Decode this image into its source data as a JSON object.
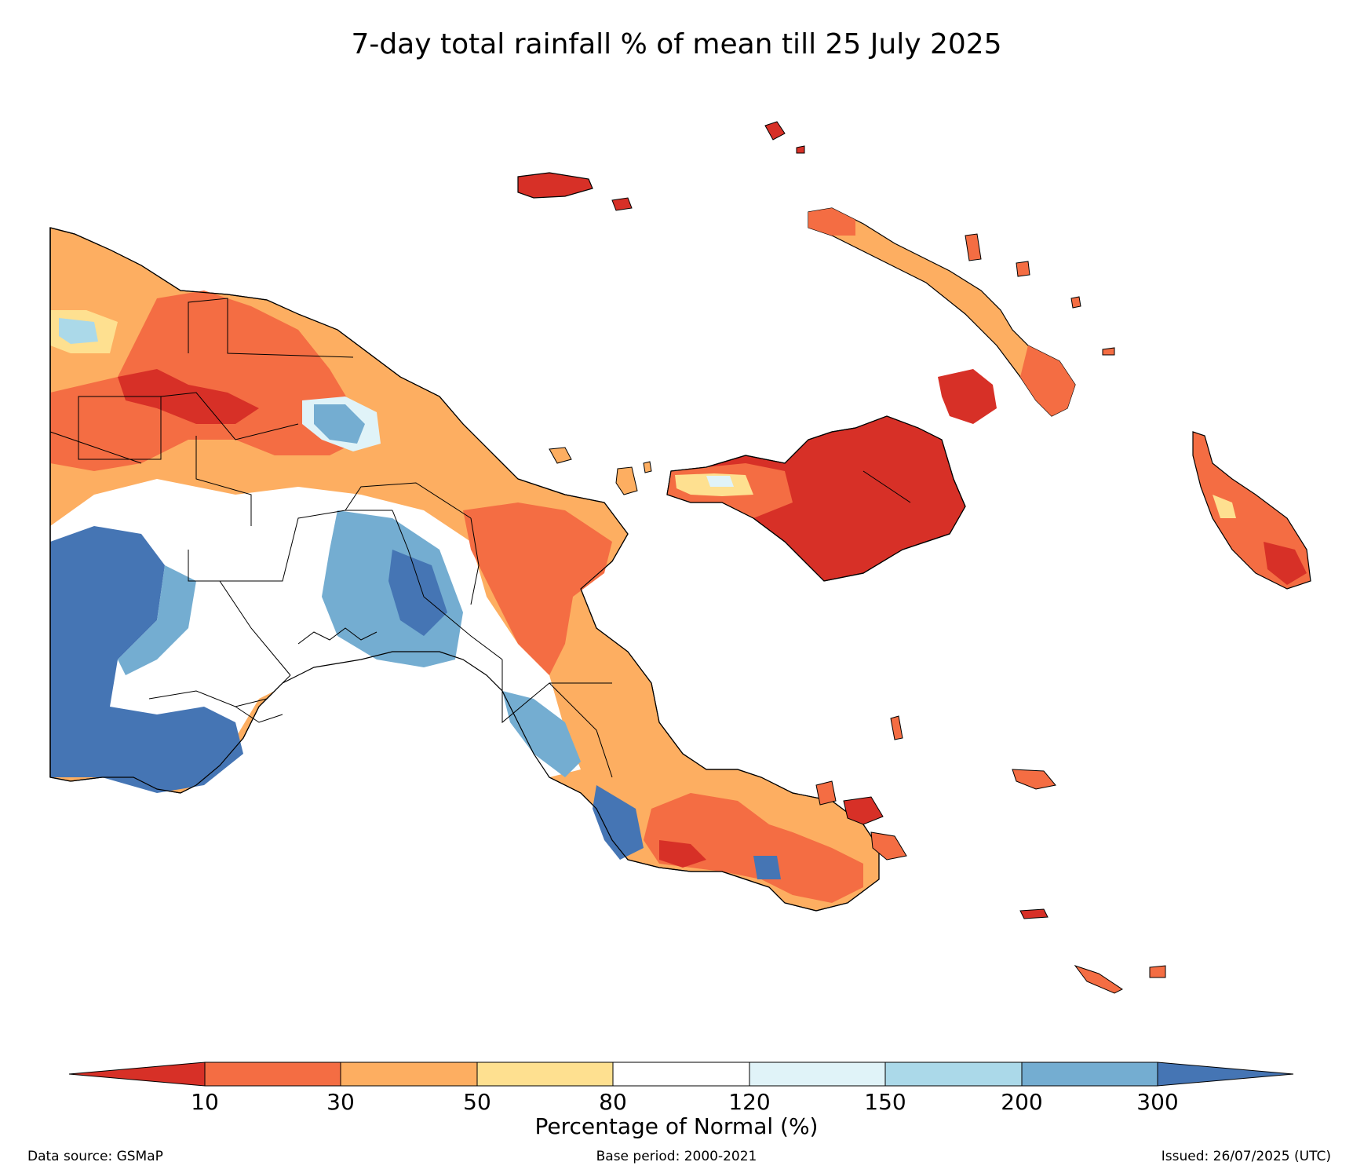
{
  "title": "7-day total rainfall % of mean till 25 July 2025",
  "colorbar": {
    "label": "Percentage of Normal (%)",
    "ticks": [
      "10",
      "30",
      "50",
      "80",
      "120",
      "150",
      "200",
      "300"
    ],
    "colors": {
      "below_10": "#d73027",
      "10_30": "#f46d43",
      "30_50": "#fdae61",
      "50_80": "#fee090",
      "80_120": "#ffffff",
      "120_150": "#e0f3f8",
      "150_200": "#abd9e9",
      "200_300": "#74add1",
      "above_300": "#4575b4"
    }
  },
  "footer": {
    "source": "Data source: GSMaP",
    "base_period": "Base period: 2000-2021",
    "issued": "Issued: 26/07/2025 (UTC)"
  }
}
